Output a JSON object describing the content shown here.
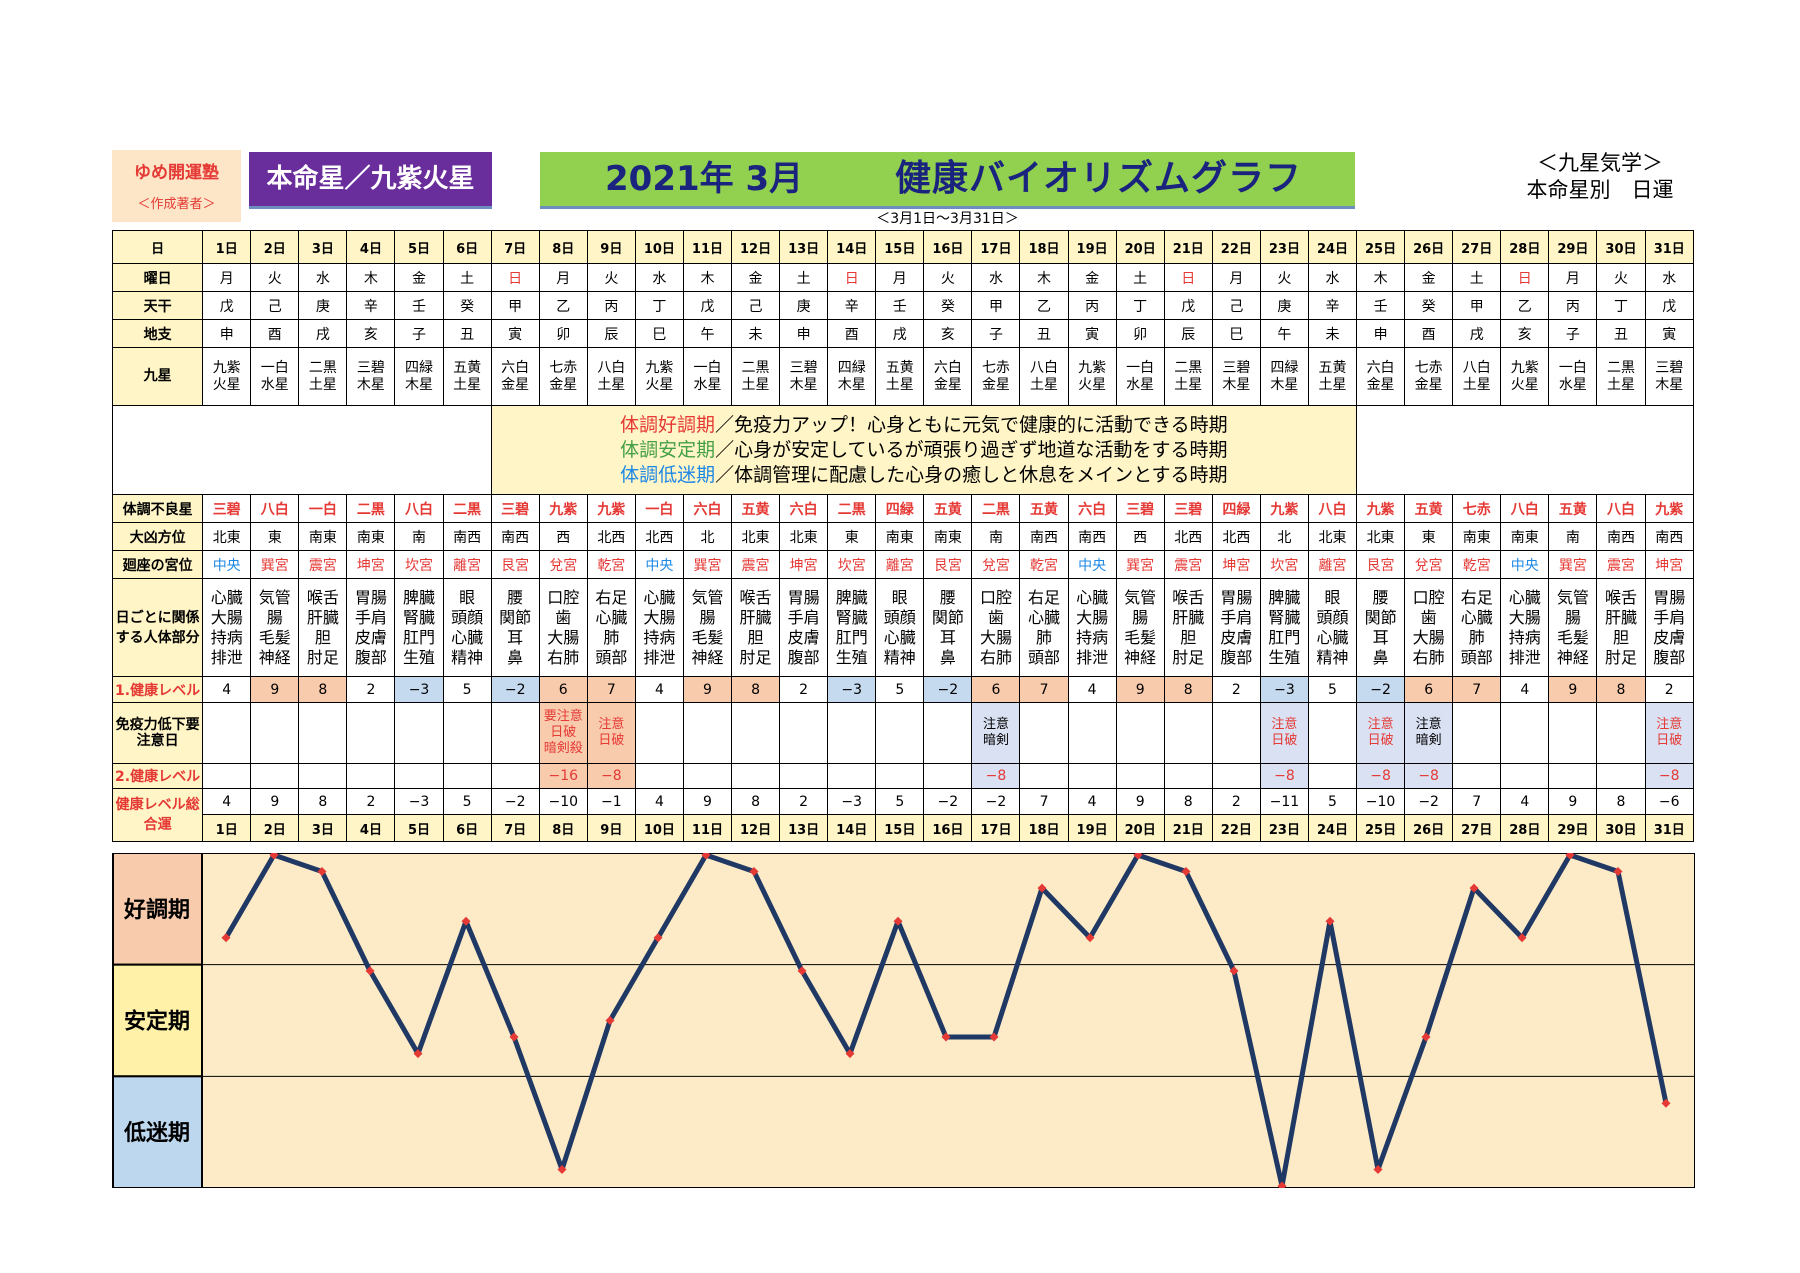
{
  "header": {
    "author_name": "ゆめ開運塾",
    "author_role": "＜作成著者＞",
    "honmeisei": "本命星／九紫火星",
    "year_month": "2021年 3月",
    "title": "健康バイオリズムグラフ",
    "range": "＜3月1日～3月31日＞",
    "right_line1": "＜九星気学＞",
    "right_line2": "本命星別　日運"
  },
  "row_labels": {
    "day": "日",
    "weekday": "曜日",
    "tenkan": "天干",
    "chishi": "地支",
    "kyusei": "九星",
    "fucho": "体調不良星",
    "daikyo": "大凶方位",
    "kaiza": "廻座の宮位",
    "body": "日ごとに関係する人体部分",
    "level1": "1.健康レベル",
    "immune": "免疫力低下要注意日",
    "level2": "2.健康レベル",
    "total": "健康レベル総合運"
  },
  "legend": {
    "good_term": "体調好調期",
    "good_desc": "／免疫力アップ！心身ともに元気で健康的に活動できる時期",
    "stable_term": "体調安定期",
    "stable_desc": "／心身が安定しているが頑張り過ぎず地道な活動をする時期",
    "low_term": "体調低迷期",
    "low_desc": "／体調管理に配慮した心身の癒しと休息をメインとする時期"
  },
  "zones": {
    "good": "好調期",
    "stable": "安定期",
    "low": "低迷期"
  },
  "colors": {
    "good_zone": "#f8cbad",
    "stable_zone": "#fff2a8",
    "low_zone": "#bdd7ee",
    "plot_bg": "#fdebc8",
    "line": "#1f3864",
    "marker": "#e53935",
    "honmei_bg": "#6a2d9c",
    "title_bg": "#92d050"
  },
  "days": [
    "1日",
    "2日",
    "3日",
    "4日",
    "5日",
    "6日",
    "7日",
    "8日",
    "9日",
    "10日",
    "11日",
    "12日",
    "13日",
    "14日",
    "15日",
    "16日",
    "17日",
    "18日",
    "19日",
    "20日",
    "21日",
    "22日",
    "23日",
    "24日",
    "25日",
    "26日",
    "27日",
    "28日",
    "29日",
    "30日",
    "31日"
  ],
  "weekdays": [
    "月",
    "火",
    "水",
    "木",
    "金",
    "土",
    "日",
    "月",
    "火",
    "水",
    "木",
    "金",
    "土",
    "日",
    "月",
    "火",
    "水",
    "木",
    "金",
    "土",
    "日",
    "月",
    "火",
    "水",
    "木",
    "金",
    "土",
    "日",
    "月",
    "火",
    "水"
  ],
  "tenkan": [
    "戊",
    "己",
    "庚",
    "辛",
    "壬",
    "癸",
    "甲",
    "乙",
    "丙",
    "丁",
    "戊",
    "己",
    "庚",
    "辛",
    "壬",
    "癸",
    "甲",
    "乙",
    "丙",
    "丁",
    "戊",
    "己",
    "庚",
    "辛",
    "壬",
    "癸",
    "甲",
    "乙",
    "丙",
    "丁",
    "戊"
  ],
  "chishi": [
    "申",
    "酉",
    "戌",
    "亥",
    "子",
    "丑",
    "寅",
    "卯",
    "辰",
    "巳",
    "午",
    "未",
    "申",
    "酉",
    "戌",
    "亥",
    "子",
    "丑",
    "寅",
    "卯",
    "辰",
    "巳",
    "午",
    "未",
    "申",
    "酉",
    "戌",
    "亥",
    "子",
    "丑",
    "寅"
  ],
  "kyusei": [
    [
      "九紫",
      "火星"
    ],
    [
      "一白",
      "水星"
    ],
    [
      "二黒",
      "土星"
    ],
    [
      "三碧",
      "木星"
    ],
    [
      "四緑",
      "木星"
    ],
    [
      "五黄",
      "土星"
    ],
    [
      "六白",
      "金星"
    ],
    [
      "七赤",
      "金星"
    ],
    [
      "八白",
      "土星"
    ],
    [
      "九紫",
      "火星"
    ],
    [
      "一白",
      "水星"
    ],
    [
      "二黒",
      "土星"
    ],
    [
      "三碧",
      "木星"
    ],
    [
      "四緑",
      "木星"
    ],
    [
      "五黄",
      "土星"
    ],
    [
      "六白",
      "金星"
    ],
    [
      "七赤",
      "金星"
    ],
    [
      "八白",
      "土星"
    ],
    [
      "九紫",
      "火星"
    ],
    [
      "一白",
      "水星"
    ],
    [
      "二黒",
      "土星"
    ],
    [
      "三碧",
      "木星"
    ],
    [
      "四緑",
      "木星"
    ],
    [
      "五黄",
      "土星"
    ],
    [
      "六白",
      "金星"
    ],
    [
      "七赤",
      "金星"
    ],
    [
      "八白",
      "土星"
    ],
    [
      "九紫",
      "火星"
    ],
    [
      "一白",
      "水星"
    ],
    [
      "二黒",
      "土星"
    ],
    [
      "三碧",
      "木星"
    ]
  ],
  "fucho": [
    "三碧",
    "八白",
    "一白",
    "二黒",
    "八白",
    "二黒",
    "三碧",
    "九紫",
    "九紫",
    "一白",
    "六白",
    "五黄",
    "六白",
    "二黒",
    "四緑",
    "五黄",
    "二黒",
    "五黄",
    "六白",
    "三碧",
    "三碧",
    "四緑",
    "九紫",
    "八白",
    "九紫",
    "五黄",
    "七赤",
    "八白",
    "五黄",
    "八白",
    "九紫"
  ],
  "daikyo": [
    "北東",
    "東",
    "南東",
    "南東",
    "南",
    "南西",
    "南西",
    "西",
    "北西",
    "北西",
    "北",
    "北東",
    "北東",
    "東",
    "南東",
    "南東",
    "南",
    "南西",
    "南西",
    "西",
    "北西",
    "北西",
    "北",
    "北東",
    "北東",
    "東",
    "南東",
    "南東",
    "南",
    "南西",
    "南西"
  ],
  "kaiza": [
    "中央",
    "巽宮",
    "震宮",
    "坤宮",
    "坎宮",
    "離宮",
    "艮宮",
    "兌宮",
    "乾宮",
    "中央",
    "巽宮",
    "震宮",
    "坤宮",
    "坎宮",
    "離宮",
    "艮宮",
    "兌宮",
    "乾宮",
    "中央",
    "巽宮",
    "震宮",
    "坤宮",
    "坎宮",
    "離宮",
    "艮宮",
    "兌宮",
    "乾宮",
    "中央",
    "巽宮",
    "震宮",
    "坤宮"
  ],
  "body": [
    [
      "心臓",
      "大腸",
      "持病",
      "排泄"
    ],
    [
      "気管",
      "腸",
      "毛髪",
      "神経"
    ],
    [
      "喉舌",
      "肝臓",
      "胆",
      "肘足"
    ],
    [
      "胃腸",
      "手肩",
      "皮膚",
      "腹部"
    ],
    [
      "脾臓",
      "腎臓",
      "肛門",
      "生殖"
    ],
    [
      "眼",
      "頭顔",
      "心臓",
      "精神"
    ],
    [
      "腰",
      "関節",
      "耳",
      "鼻"
    ],
    [
      "口腔",
      "歯",
      "大腸",
      "右肺"
    ],
    [
      "右足",
      "心臓",
      "肺",
      "頭部"
    ],
    [
      "心臓",
      "大腸",
      "持病",
      "排泄"
    ],
    [
      "気管",
      "腸",
      "毛髪",
      "神経"
    ],
    [
      "喉舌",
      "肝臓",
      "胆",
      "肘足"
    ],
    [
      "胃腸",
      "手肩",
      "皮膚",
      "腹部"
    ],
    [
      "脾臓",
      "腎臓",
      "肛門",
      "生殖"
    ],
    [
      "眼",
      "頭顔",
      "心臓",
      "精神"
    ],
    [
      "腰",
      "関節",
      "耳",
      "鼻"
    ],
    [
      "口腔",
      "歯",
      "大腸",
      "右肺"
    ],
    [
      "右足",
      "心臓",
      "肺",
      "頭部"
    ],
    [
      "心臓",
      "大腸",
      "持病",
      "排泄"
    ],
    [
      "気管",
      "腸",
      "毛髪",
      "神経"
    ],
    [
      "喉舌",
      "肝臓",
      "胆",
      "肘足"
    ],
    [
      "胃腸",
      "手肩",
      "皮膚",
      "腹部"
    ],
    [
      "脾臓",
      "腎臓",
      "肛門",
      "生殖"
    ],
    [
      "眼",
      "頭顔",
      "心臓",
      "精神"
    ],
    [
      "腰",
      "関節",
      "耳",
      "鼻"
    ],
    [
      "口腔",
      "歯",
      "大腸",
      "右肺"
    ],
    [
      "右足",
      "心臓",
      "肺",
      "頭部"
    ],
    [
      "心臓",
      "大腸",
      "持病",
      "排泄"
    ],
    [
      "気管",
      "腸",
      "毛髪",
      "神経"
    ],
    [
      "喉舌",
      "肝臓",
      "胆",
      "肘足"
    ],
    [
      "胃腸",
      "手肩",
      "皮膚",
      "腹部"
    ]
  ],
  "level1": [
    "4",
    "9",
    "8",
    "2",
    "−3",
    "5",
    "−2",
    "6",
    "7",
    "4",
    "9",
    "8",
    "2",
    "−3",
    "5",
    "−2",
    "6",
    "7",
    "4",
    "9",
    "8",
    "2",
    "−3",
    "5",
    "−2",
    "6",
    "7",
    "4",
    "9",
    "8",
    "2"
  ],
  "immune": [
    [],
    [],
    [],
    [],
    [],
    [],
    [],
    [
      "要注意",
      "日破",
      "暗剣殺"
    ],
    [
      "注意",
      "日破"
    ],
    [],
    [],
    [],
    [],
    [],
    [],
    [],
    [
      "注意",
      "暗剣"
    ],
    [],
    [],
    [],
    [],
    [],
    [
      "注意",
      "日破"
    ],
    [],
    [
      "注意",
      "日破"
    ],
    [
      "注意",
      "暗剣"
    ],
    [],
    [],
    [],
    [],
    [
      "注意",
      "日破"
    ]
  ],
  "level2": [
    "",
    "",
    "",
    "",
    "",
    "",
    "",
    "−16",
    "−8",
    "",
    "",
    "",
    "",
    "",
    "",
    "",
    "−8",
    "",
    "",
    "",
    "",
    "",
    "−8",
    "",
    "−8",
    "−8",
    "",
    "",
    "",
    "",
    "−8"
  ],
  "total": [
    "4",
    "9",
    "8",
    "2",
    "−3",
    "5",
    "−2",
    "−10",
    "−1",
    "4",
    "9",
    "8",
    "2",
    "−3",
    "5",
    "−2",
    "−2",
    "7",
    "4",
    "9",
    "8",
    "2",
    "−11",
    "5",
    "−10",
    "−2",
    "7",
    "4",
    "9",
    "8",
    "−6"
  ],
  "chart_data": {
    "type": "line",
    "title": "健康バイオリズムグラフ",
    "categories": [
      "1日",
      "2日",
      "3日",
      "4日",
      "5日",
      "6日",
      "7日",
      "8日",
      "9日",
      "10日",
      "11日",
      "12日",
      "13日",
      "14日",
      "15日",
      "16日",
      "17日",
      "18日",
      "19日",
      "20日",
      "21日",
      "22日",
      "23日",
      "24日",
      "25日",
      "26日",
      "27日",
      "28日",
      "29日",
      "30日",
      "31日"
    ],
    "series": [
      {
        "values": [
          4,
          9,
          8,
          2,
          -3,
          5,
          -2,
          -10,
          -1,
          4,
          9,
          8,
          2,
          -3,
          5,
          -2,
          -2,
          7,
          4,
          9,
          8,
          2,
          -11,
          5,
          -10,
          -2,
          7,
          4,
          9,
          8,
          -6
        ]
      }
    ],
    "zones": [
      "好調期",
      "安定期",
      "低迷期"
    ],
    "ylim": [
      -11,
      9
    ],
    "grid": false,
    "legend": "none"
  }
}
